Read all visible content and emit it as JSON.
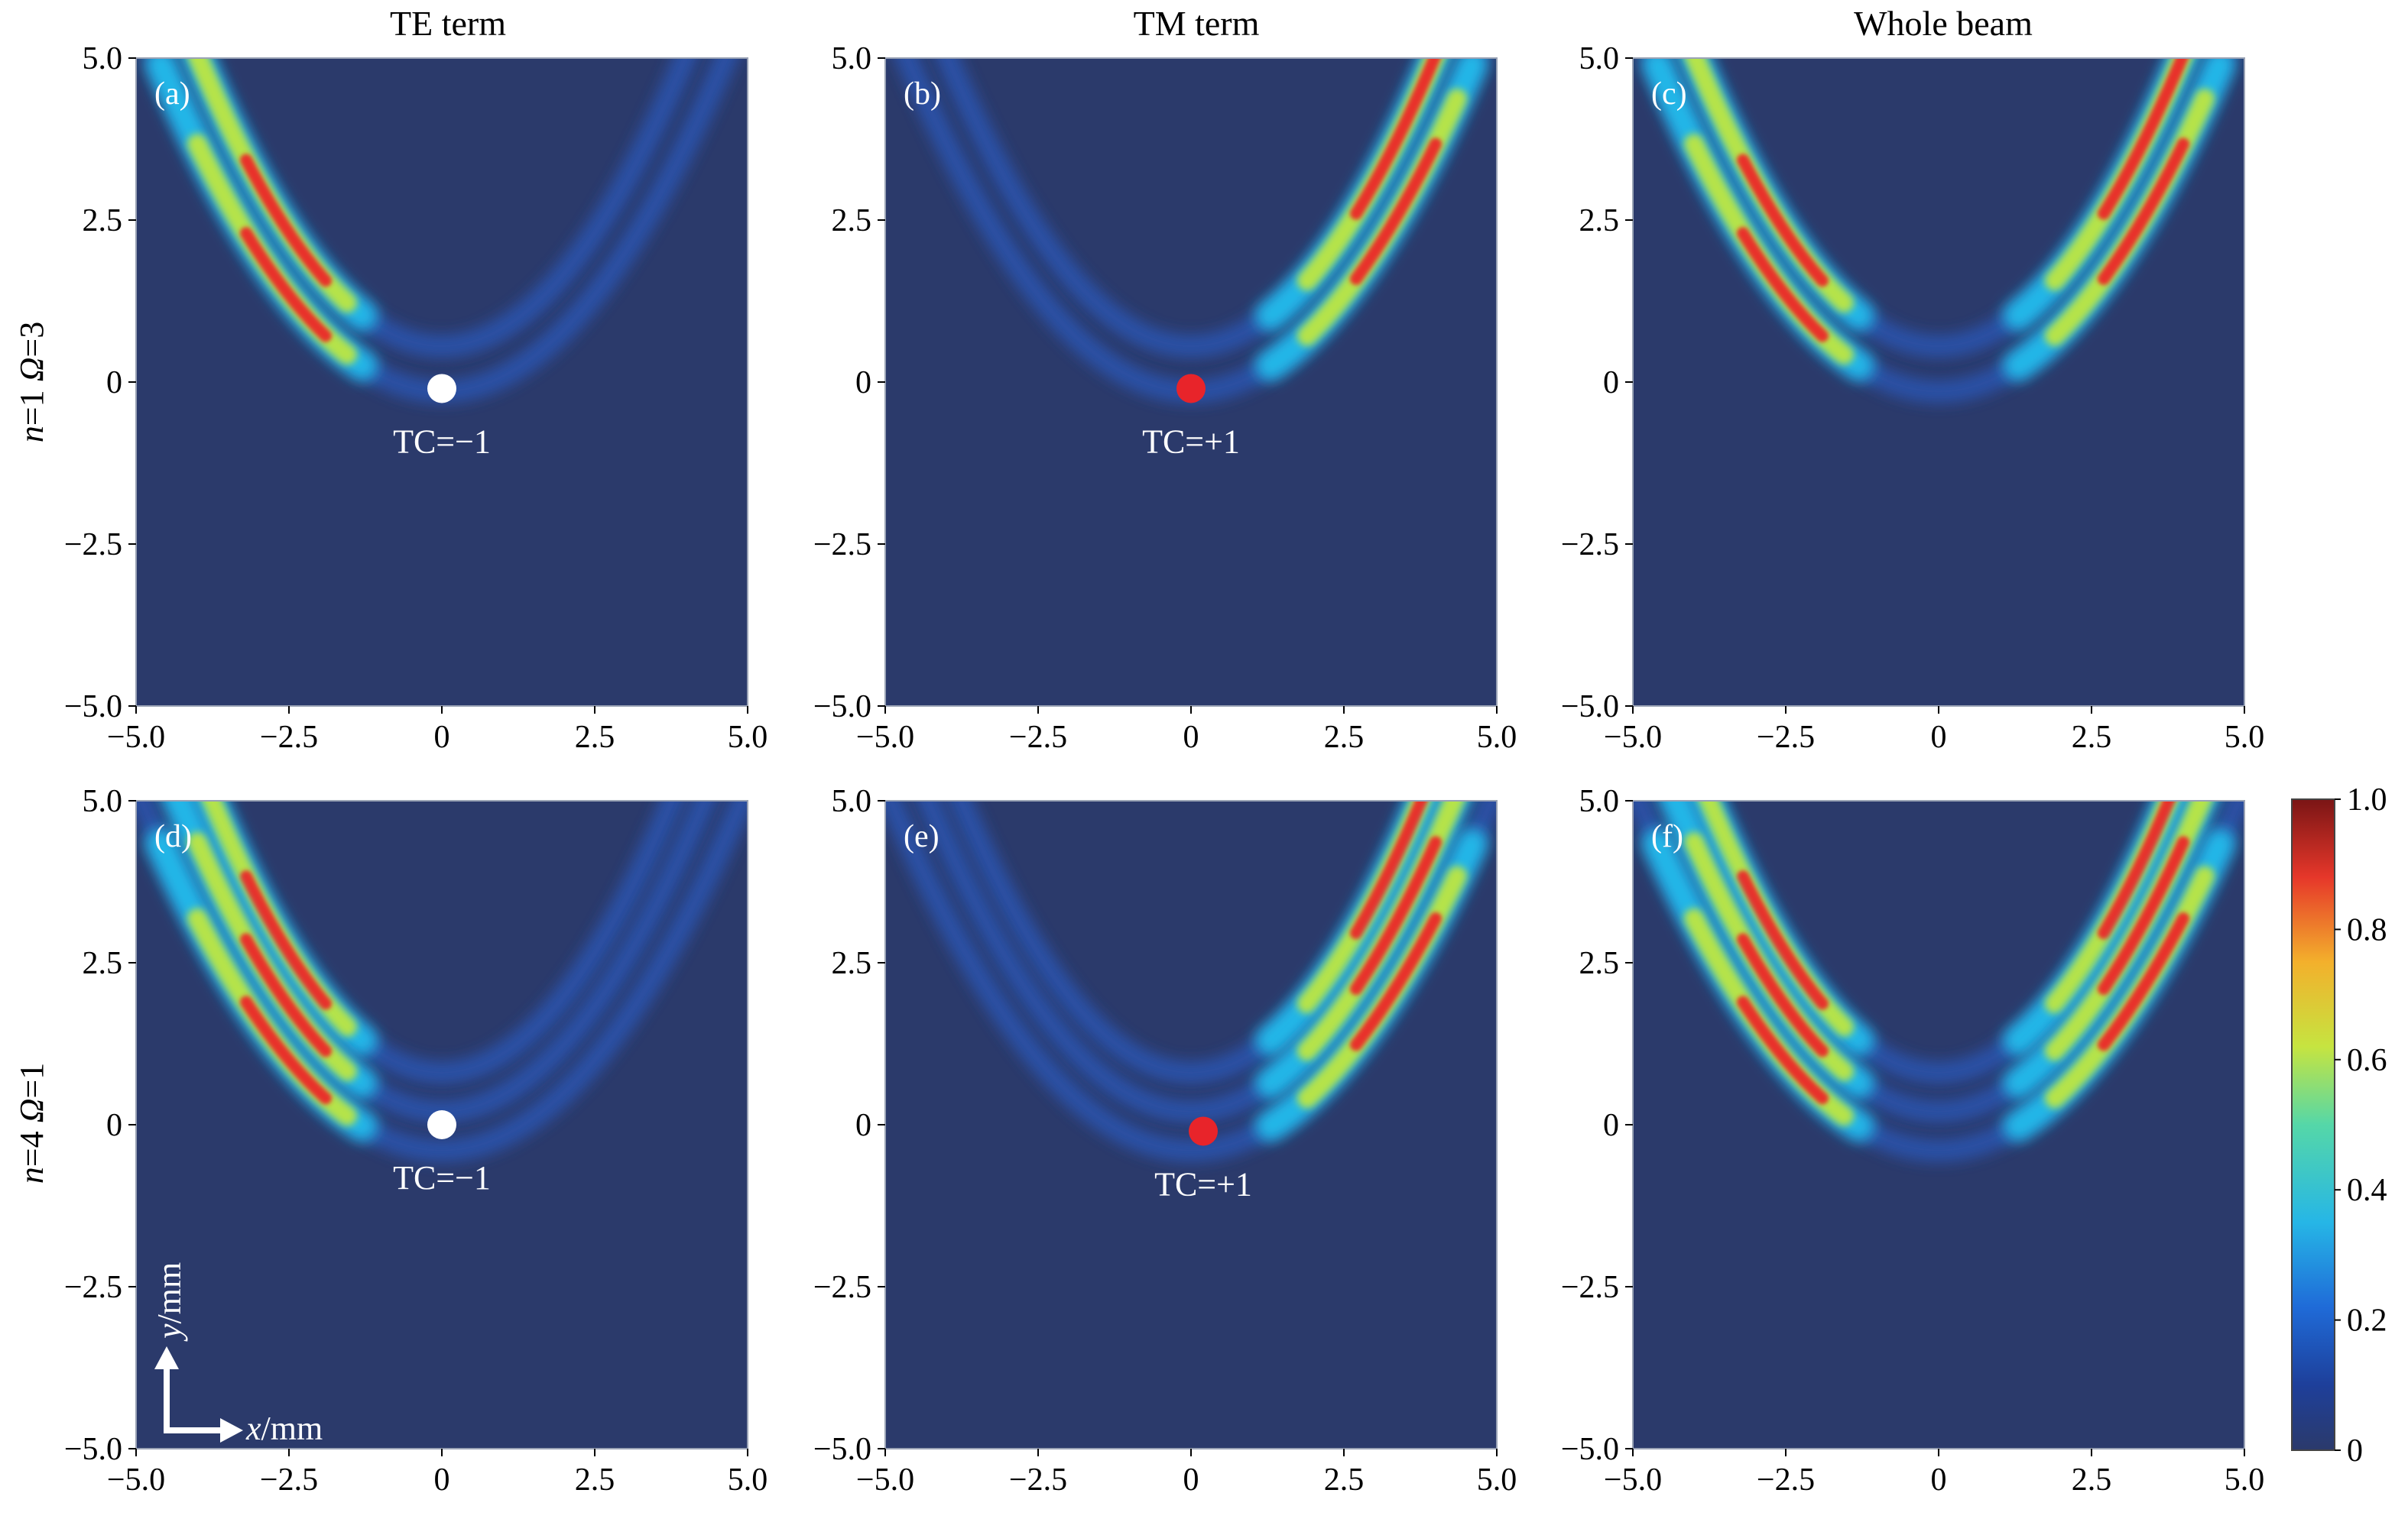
{
  "chart_data": {
    "type": "heatmap",
    "column_titles": [
      "TE term",
      "TM term",
      "Whole beam"
    ],
    "row_labels": [
      {
        "n": "n",
        "n_val": "=1 ",
        "omega": "Ω",
        "omega_val": "=3"
      },
      {
        "n": "n",
        "n_val": "=4 ",
        "omega": "Ω",
        "omega_val": "=1"
      }
    ],
    "xlim": [
      -5.0,
      5.0
    ],
    "ylim": [
      -5.0,
      5.0
    ],
    "x_ticks": [
      -5.0,
      -2.5,
      0,
      2.5,
      5.0
    ],
    "y_ticks": [
      -5.0,
      -2.5,
      0,
      2.5,
      5.0
    ],
    "x_tick_labels": [
      "−5.0",
      "−2.5",
      "0",
      "2.5",
      "5.0"
    ],
    "y_tick_labels": [
      "−5.0",
      "−2.5",
      "0",
      "2.5",
      "5.0"
    ],
    "axis_indicator": {
      "x": "x",
      "x_unit": "/mm",
      "y": "y",
      "y_unit": "/mm"
    },
    "colorbar": {
      "min": 0,
      "max": 1.0,
      "ticks": [
        0,
        0.2,
        0.4,
        0.6,
        0.8,
        1.0
      ],
      "tick_labels": [
        "0",
        "0.2",
        "0.4",
        "0.6",
        "0.8",
        "1.0"
      ],
      "colormap": "jet"
    },
    "background_color": "#2b3a6b",
    "panels": [
      {
        "label": "(a)",
        "row": 0,
        "col": 0,
        "term": "TE",
        "n": 1,
        "omega": 3,
        "singularity": {
          "x": 0.0,
          "y": -0.1,
          "color": "#ffffff",
          "label": "TC=−1"
        }
      },
      {
        "label": "(b)",
        "row": 0,
        "col": 1,
        "term": "TM",
        "n": 1,
        "omega": 3,
        "singularity": {
          "x": 0.0,
          "y": -0.1,
          "color": "#e8242a",
          "label": "TC=+1"
        }
      },
      {
        "label": "(c)",
        "row": 0,
        "col": 2,
        "term": "Whole",
        "n": 1,
        "omega": 3,
        "singularity": null
      },
      {
        "label": "(d)",
        "row": 1,
        "col": 0,
        "term": "TE",
        "n": 4,
        "omega": 1,
        "singularity": {
          "x": 0.0,
          "y": 0.0,
          "color": "#ffffff",
          "label": "TC=−1"
        }
      },
      {
        "label": "(e)",
        "row": 1,
        "col": 1,
        "term": "TM",
        "n": 4,
        "omega": 1,
        "singularity": {
          "x": 0.2,
          "y": -0.1,
          "color": "#e8242a",
          "label": "TC=+1"
        }
      },
      {
        "label": "(f)",
        "row": 1,
        "col": 2,
        "term": "Whole",
        "n": 4,
        "omega": 1,
        "singularity": null
      }
    ]
  }
}
